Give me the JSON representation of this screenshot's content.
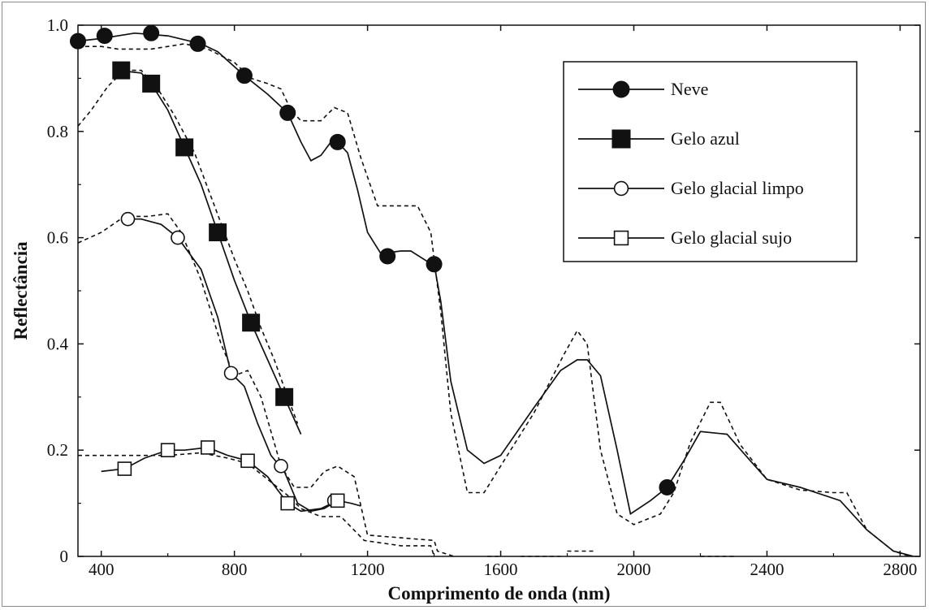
{
  "chart_data": {
    "type": "line",
    "title": "",
    "xlabel": "Comprimento de onda (nm)",
    "ylabel": "Reflectância",
    "xlim": [
      330,
      2860
    ],
    "ylim": [
      0,
      1.0
    ],
    "xticks": [
      400,
      800,
      1200,
      1600,
      2000,
      2400,
      2800
    ],
    "xtick_labels": [
      "400",
      "800",
      "1200",
      "1600",
      "2000",
      "2400",
      "2800"
    ],
    "yticks": [
      0,
      0.2,
      0.4,
      0.6,
      0.8,
      1.0
    ],
    "ytick_labels": [
      "0",
      "0.2",
      "0.4",
      "0.6",
      "0.8",
      "1.0"
    ],
    "grid": false,
    "legend_position": "top-right",
    "series": [
      {
        "name": "Neve",
        "marker": "filled-circle",
        "values": [
          [
            330,
            0.97
          ],
          [
            400,
            0.975
          ],
          [
            500,
            0.985
          ],
          [
            600,
            0.98
          ],
          [
            700,
            0.965
          ],
          [
            750,
            0.95
          ],
          [
            830,
            0.905
          ],
          [
            900,
            0.87
          ],
          [
            960,
            0.835
          ],
          [
            1000,
            0.78
          ],
          [
            1030,
            0.745
          ],
          [
            1060,
            0.755
          ],
          [
            1090,
            0.78
          ],
          [
            1110,
            0.78
          ],
          [
            1140,
            0.76
          ],
          [
            1170,
            0.69
          ],
          [
            1200,
            0.61
          ],
          [
            1240,
            0.57
          ],
          [
            1300,
            0.575
          ],
          [
            1330,
            0.575
          ],
          [
            1380,
            0.555
          ],
          [
            1400,
            0.55
          ],
          [
            1420,
            0.48
          ],
          [
            1450,
            0.33
          ],
          [
            1500,
            0.2
          ],
          [
            1550,
            0.175
          ],
          [
            1600,
            0.19
          ],
          [
            1700,
            0.28
          ],
          [
            1780,
            0.35
          ],
          [
            1830,
            0.37
          ],
          [
            1860,
            0.37
          ],
          [
            1900,
            0.34
          ],
          [
            1950,
            0.2
          ],
          [
            1990,
            0.08
          ],
          [
            2050,
            0.105
          ],
          [
            2100,
            0.13
          ],
          [
            2150,
            0.18
          ],
          [
            2200,
            0.235
          ],
          [
            2280,
            0.23
          ],
          [
            2350,
            0.18
          ],
          [
            2400,
            0.145
          ],
          [
            2500,
            0.13
          ],
          [
            2620,
            0.105
          ],
          [
            2700,
            0.05
          ],
          [
            2780,
            0.01
          ],
          [
            2840,
            0.0
          ]
        ]
      },
      {
        "name": "Gelo azul",
        "marker": "filled-square",
        "values": [
          [
            450,
            0.915
          ],
          [
            520,
            0.91
          ],
          [
            550,
            0.89
          ],
          [
            600,
            0.84
          ],
          [
            650,
            0.77
          ],
          [
            700,
            0.7
          ],
          [
            750,
            0.61
          ],
          [
            800,
            0.52
          ],
          [
            850,
            0.44
          ],
          [
            900,
            0.37
          ],
          [
            950,
            0.3
          ],
          [
            1000,
            0.23
          ]
        ]
      },
      {
        "name": "Gelo glacial limpo",
        "marker": "open-circle",
        "values": [
          [
            470,
            0.635
          ],
          [
            520,
            0.635
          ],
          [
            580,
            0.625
          ],
          [
            630,
            0.6
          ],
          [
            700,
            0.54
          ],
          [
            750,
            0.45
          ],
          [
            790,
            0.345
          ],
          [
            830,
            0.32
          ],
          [
            870,
            0.25
          ],
          [
            910,
            0.19
          ],
          [
            950,
            0.16
          ],
          [
            990,
            0.1
          ],
          [
            1030,
            0.085
          ],
          [
            1070,
            0.09
          ],
          [
            1110,
            0.105
          ],
          [
            1150,
            0.1
          ],
          [
            1180,
            0.095
          ]
        ]
      },
      {
        "name": "Gelo glacial sujo",
        "marker": "open-square",
        "values": [
          [
            400,
            0.16
          ],
          [
            470,
            0.165
          ],
          [
            530,
            0.185
          ],
          [
            600,
            0.2
          ],
          [
            650,
            0.2
          ],
          [
            720,
            0.205
          ],
          [
            780,
            0.19
          ],
          [
            840,
            0.18
          ],
          [
            900,
            0.15
          ],
          [
            960,
            0.1
          ],
          [
            1000,
            0.085
          ],
          [
            1060,
            0.09
          ],
          [
            1110,
            0.105
          ]
        ]
      }
    ],
    "reference_curves": [
      {
        "style": "dashed",
        "values": [
          [
            330,
            0.96
          ],
          [
            400,
            0.96
          ],
          [
            450,
            0.955
          ],
          [
            550,
            0.955
          ],
          [
            600,
            0.96
          ],
          [
            650,
            0.965
          ],
          [
            720,
            0.955
          ],
          [
            800,
            0.93
          ],
          [
            850,
            0.9
          ],
          [
            900,
            0.89
          ],
          [
            940,
            0.88
          ],
          [
            970,
            0.84
          ],
          [
            1000,
            0.82
          ],
          [
            1060,
            0.82
          ],
          [
            1100,
            0.845
          ],
          [
            1140,
            0.835
          ],
          [
            1180,
            0.75
          ],
          [
            1230,
            0.66
          ],
          [
            1300,
            0.66
          ],
          [
            1350,
            0.66
          ],
          [
            1390,
            0.61
          ],
          [
            1420,
            0.46
          ],
          [
            1450,
            0.27
          ],
          [
            1500,
            0.12
          ],
          [
            1550,
            0.12
          ],
          [
            1600,
            0.17
          ],
          [
            1700,
            0.27
          ],
          [
            1790,
            0.38
          ],
          [
            1830,
            0.425
          ],
          [
            1860,
            0.4
          ],
          [
            1900,
            0.2
          ],
          [
            1950,
            0.08
          ],
          [
            2000,
            0.06
          ],
          [
            2080,
            0.08
          ],
          [
            2120,
            0.12
          ],
          [
            2170,
            0.215
          ],
          [
            2230,
            0.29
          ],
          [
            2260,
            0.29
          ],
          [
            2320,
            0.21
          ],
          [
            2400,
            0.145
          ],
          [
            2500,
            0.125
          ],
          [
            2600,
            0.12
          ],
          [
            2640,
            0.12
          ],
          [
            2700,
            0.05
          ],
          [
            2780,
            0.01
          ],
          [
            2830,
            0.0
          ]
        ]
      },
      {
        "style": "dashed",
        "values": [
          [
            330,
            0.81
          ],
          [
            370,
            0.84
          ],
          [
            420,
            0.885
          ],
          [
            470,
            0.915
          ],
          [
            520,
            0.915
          ],
          [
            570,
            0.88
          ],
          [
            620,
            0.83
          ],
          [
            680,
            0.76
          ],
          [
            740,
            0.66
          ],
          [
            800,
            0.56
          ],
          [
            840,
            0.5
          ],
          [
            880,
            0.43
          ],
          [
            920,
            0.37
          ],
          [
            960,
            0.3
          ],
          [
            990,
            0.25
          ]
        ]
      },
      {
        "style": "dashed",
        "values": [
          [
            330,
            0.59
          ],
          [
            400,
            0.61
          ],
          [
            470,
            0.64
          ],
          [
            540,
            0.64
          ],
          [
            600,
            0.645
          ],
          [
            640,
            0.61
          ],
          [
            700,
            0.52
          ],
          [
            760,
            0.4
          ],
          [
            800,
            0.34
          ],
          [
            840,
            0.35
          ],
          [
            880,
            0.3
          ],
          [
            940,
            0.17
          ],
          [
            980,
            0.13
          ],
          [
            1030,
            0.13
          ],
          [
            1070,
            0.16
          ],
          [
            1110,
            0.17
          ],
          [
            1160,
            0.15
          ],
          [
            1200,
            0.04
          ],
          [
            1300,
            0.035
          ],
          [
            1400,
            0.03
          ],
          [
            1410,
            0.01
          ],
          [
            1460,
            0.0
          ]
        ]
      },
      {
        "style": "dashed",
        "values": [
          [
            330,
            0.19
          ],
          [
            470,
            0.19
          ],
          [
            550,
            0.19
          ],
          [
            600,
            0.19
          ],
          [
            700,
            0.195
          ],
          [
            780,
            0.185
          ],
          [
            840,
            0.175
          ],
          [
            900,
            0.145
          ],
          [
            960,
            0.115
          ],
          [
            1000,
            0.09
          ],
          [
            1060,
            0.075
          ],
          [
            1120,
            0.075
          ],
          [
            1190,
            0.03
          ],
          [
            1300,
            0.02
          ],
          [
            1390,
            0.02
          ],
          [
            1400,
            0.0
          ]
        ]
      }
    ],
    "floor_segments": [
      [
        [
          1560,
          0.0
        ],
        [
          1600,
          0.0
        ]
      ],
      [
        [
          1660,
          0.0
        ],
        [
          1780,
          0.0
        ]
      ],
      [
        [
          1800,
          0.01
        ],
        [
          1880,
          0.01
        ]
      ],
      [
        [
          2200,
          0.0
        ],
        [
          2300,
          0.0
        ]
      ]
    ]
  },
  "colors": {
    "ink": "#111111",
    "frame": "#8a8a8a",
    "background": "#ffffff"
  }
}
